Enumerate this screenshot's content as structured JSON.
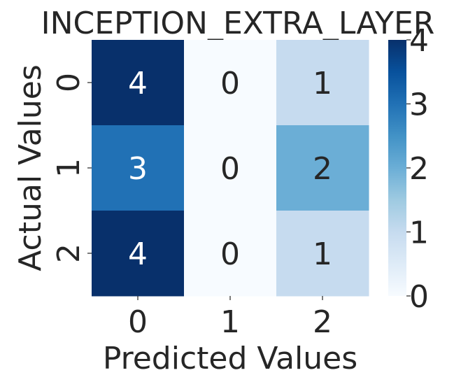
{
  "chart_data": {
    "type": "heatmap",
    "title": "INCEPTION_EXTRA_LAYER",
    "xlabel": "Predicted Values",
    "ylabel": "Actual Values",
    "x_categories": [
      "0",
      "1",
      "2"
    ],
    "y_categories": [
      "0",
      "1",
      "2"
    ],
    "values": [
      [
        4,
        0,
        1
      ],
      [
        3,
        0,
        2
      ],
      [
        4,
        0,
        1
      ]
    ],
    "colorbar": {
      "min": 0,
      "max": 4,
      "ticks": [
        "0",
        "1",
        "2",
        "3",
        "4"
      ],
      "colormap": "Blues"
    },
    "grid": false
  }
}
